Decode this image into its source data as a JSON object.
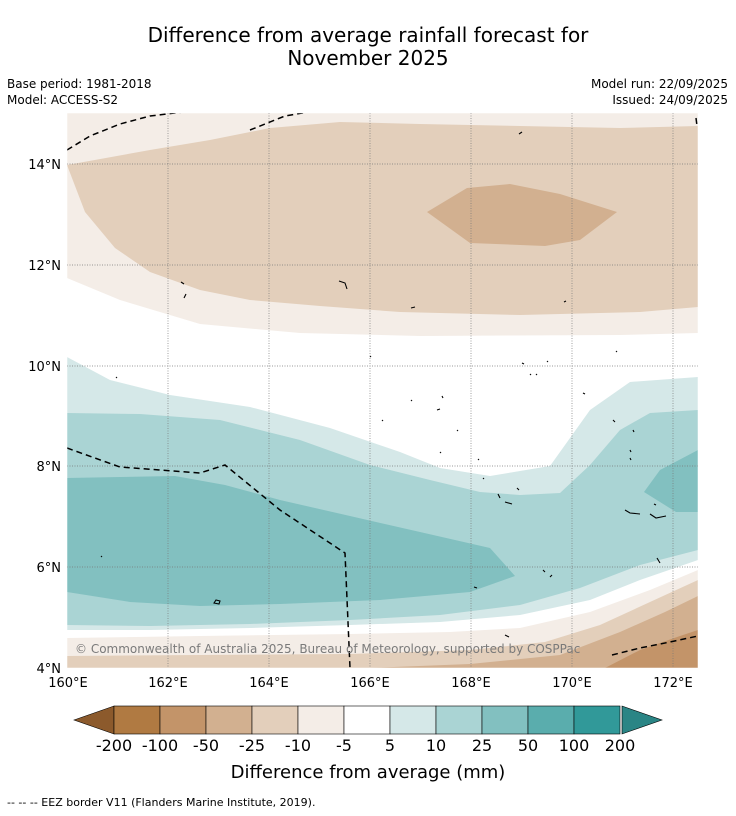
{
  "header": {
    "title_line1": "Difference from average rainfall forecast for",
    "title_line2": "November 2025",
    "base_period": "Base period: 1981-2018",
    "model": "Model: ACCESS-S2",
    "model_run": "Model run: 22/09/2025",
    "issued": "Issued: 24/09/2025"
  },
  "map": {
    "copyright": "© Commonwealth of Australia 2025, Bureau of Meteorology, supported by COSPPac",
    "lat_labels": [
      "14°N",
      "12°N",
      "10°N",
      "8°N",
      "6°N",
      "4°N"
    ],
    "lon_labels": [
      "160°E",
      "162°E",
      "164°E",
      "166°E",
      "168°E",
      "170°E",
      "172°E"
    ],
    "lat_range": [
      4,
      15
    ],
    "lon_range": [
      160,
      172.5
    ]
  },
  "colorbar": {
    "title": "Difference from average (mm)",
    "tick_labels": [
      "-200",
      "-100",
      "-50",
      "-25",
      "-10",
      "-5",
      "5",
      "10",
      "25",
      "50",
      "100",
      "200"
    ],
    "colors": [
      "#8c5a2c",
      "#b07a42",
      "#c39469",
      "#d2b090",
      "#e3cfbb",
      "#f4ede7",
      "#ffffff",
      "#d5e8e8",
      "#aad4d4",
      "#82c0c0",
      "#5aadad",
      "#319999",
      "#2a8585"
    ]
  },
  "footer": {
    "legend_text": "-- -- -- EEZ border V11 (Flanders Marine Institute, 2019)."
  }
}
